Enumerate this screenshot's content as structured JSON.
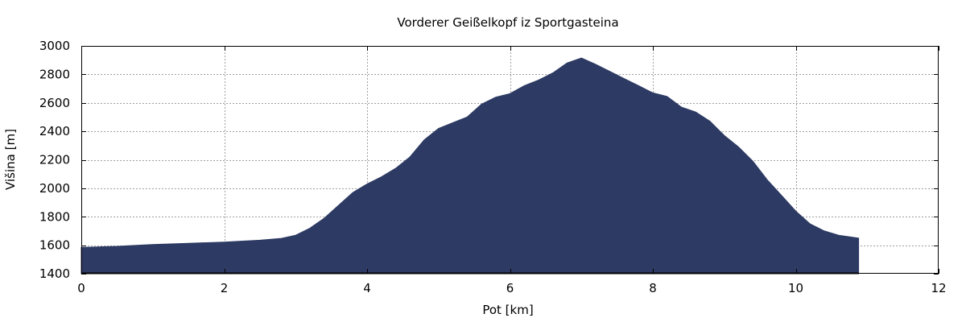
{
  "chart_data": {
    "type": "area",
    "title": "Vorderer Geißelkopf iz Sportgasteina",
    "xlabel": "Pot [km]",
    "ylabel": "Višina [m]",
    "xlim": [
      0,
      12
    ],
    "ylim": [
      1400,
      3000
    ],
    "xticks": [
      0,
      2,
      4,
      6,
      8,
      10,
      12
    ],
    "yticks": [
      1400,
      1600,
      1800,
      2000,
      2200,
      2400,
      2600,
      2800,
      3000
    ],
    "grid": true,
    "fill_color": "#2d3a63",
    "series": [
      {
        "x": [
          0,
          0.5,
          1.0,
          1.5,
          2.0,
          2.5,
          2.8,
          3.0,
          3.2,
          3.4,
          3.6,
          3.8,
          4.0,
          4.2,
          4.4,
          4.6,
          4.8,
          5.0,
          5.2,
          5.4,
          5.6,
          5.8,
          6.0,
          6.2,
          6.4,
          6.6,
          6.8,
          7.0,
          7.2,
          7.4,
          7.6,
          7.8,
          8.0,
          8.2,
          8.4,
          8.6,
          8.8,
          9.0,
          9.2,
          9.4,
          9.6,
          9.8,
          10.0,
          10.2,
          10.4,
          10.6,
          10.88
        ],
        "y": [
          1585,
          1592,
          1605,
          1613,
          1622,
          1635,
          1648,
          1670,
          1720,
          1790,
          1880,
          1970,
          2030,
          2080,
          2140,
          2220,
          2340,
          2420,
          2460,
          2500,
          2590,
          2640,
          2665,
          2720,
          2760,
          2810,
          2880,
          2915,
          2870,
          2820,
          2770,
          2720,
          2670,
          2645,
          2570,
          2535,
          2470,
          2370,
          2290,
          2190,
          2060,
          1950,
          1840,
          1750,
          1700,
          1670,
          1650
        ]
      }
    ]
  }
}
